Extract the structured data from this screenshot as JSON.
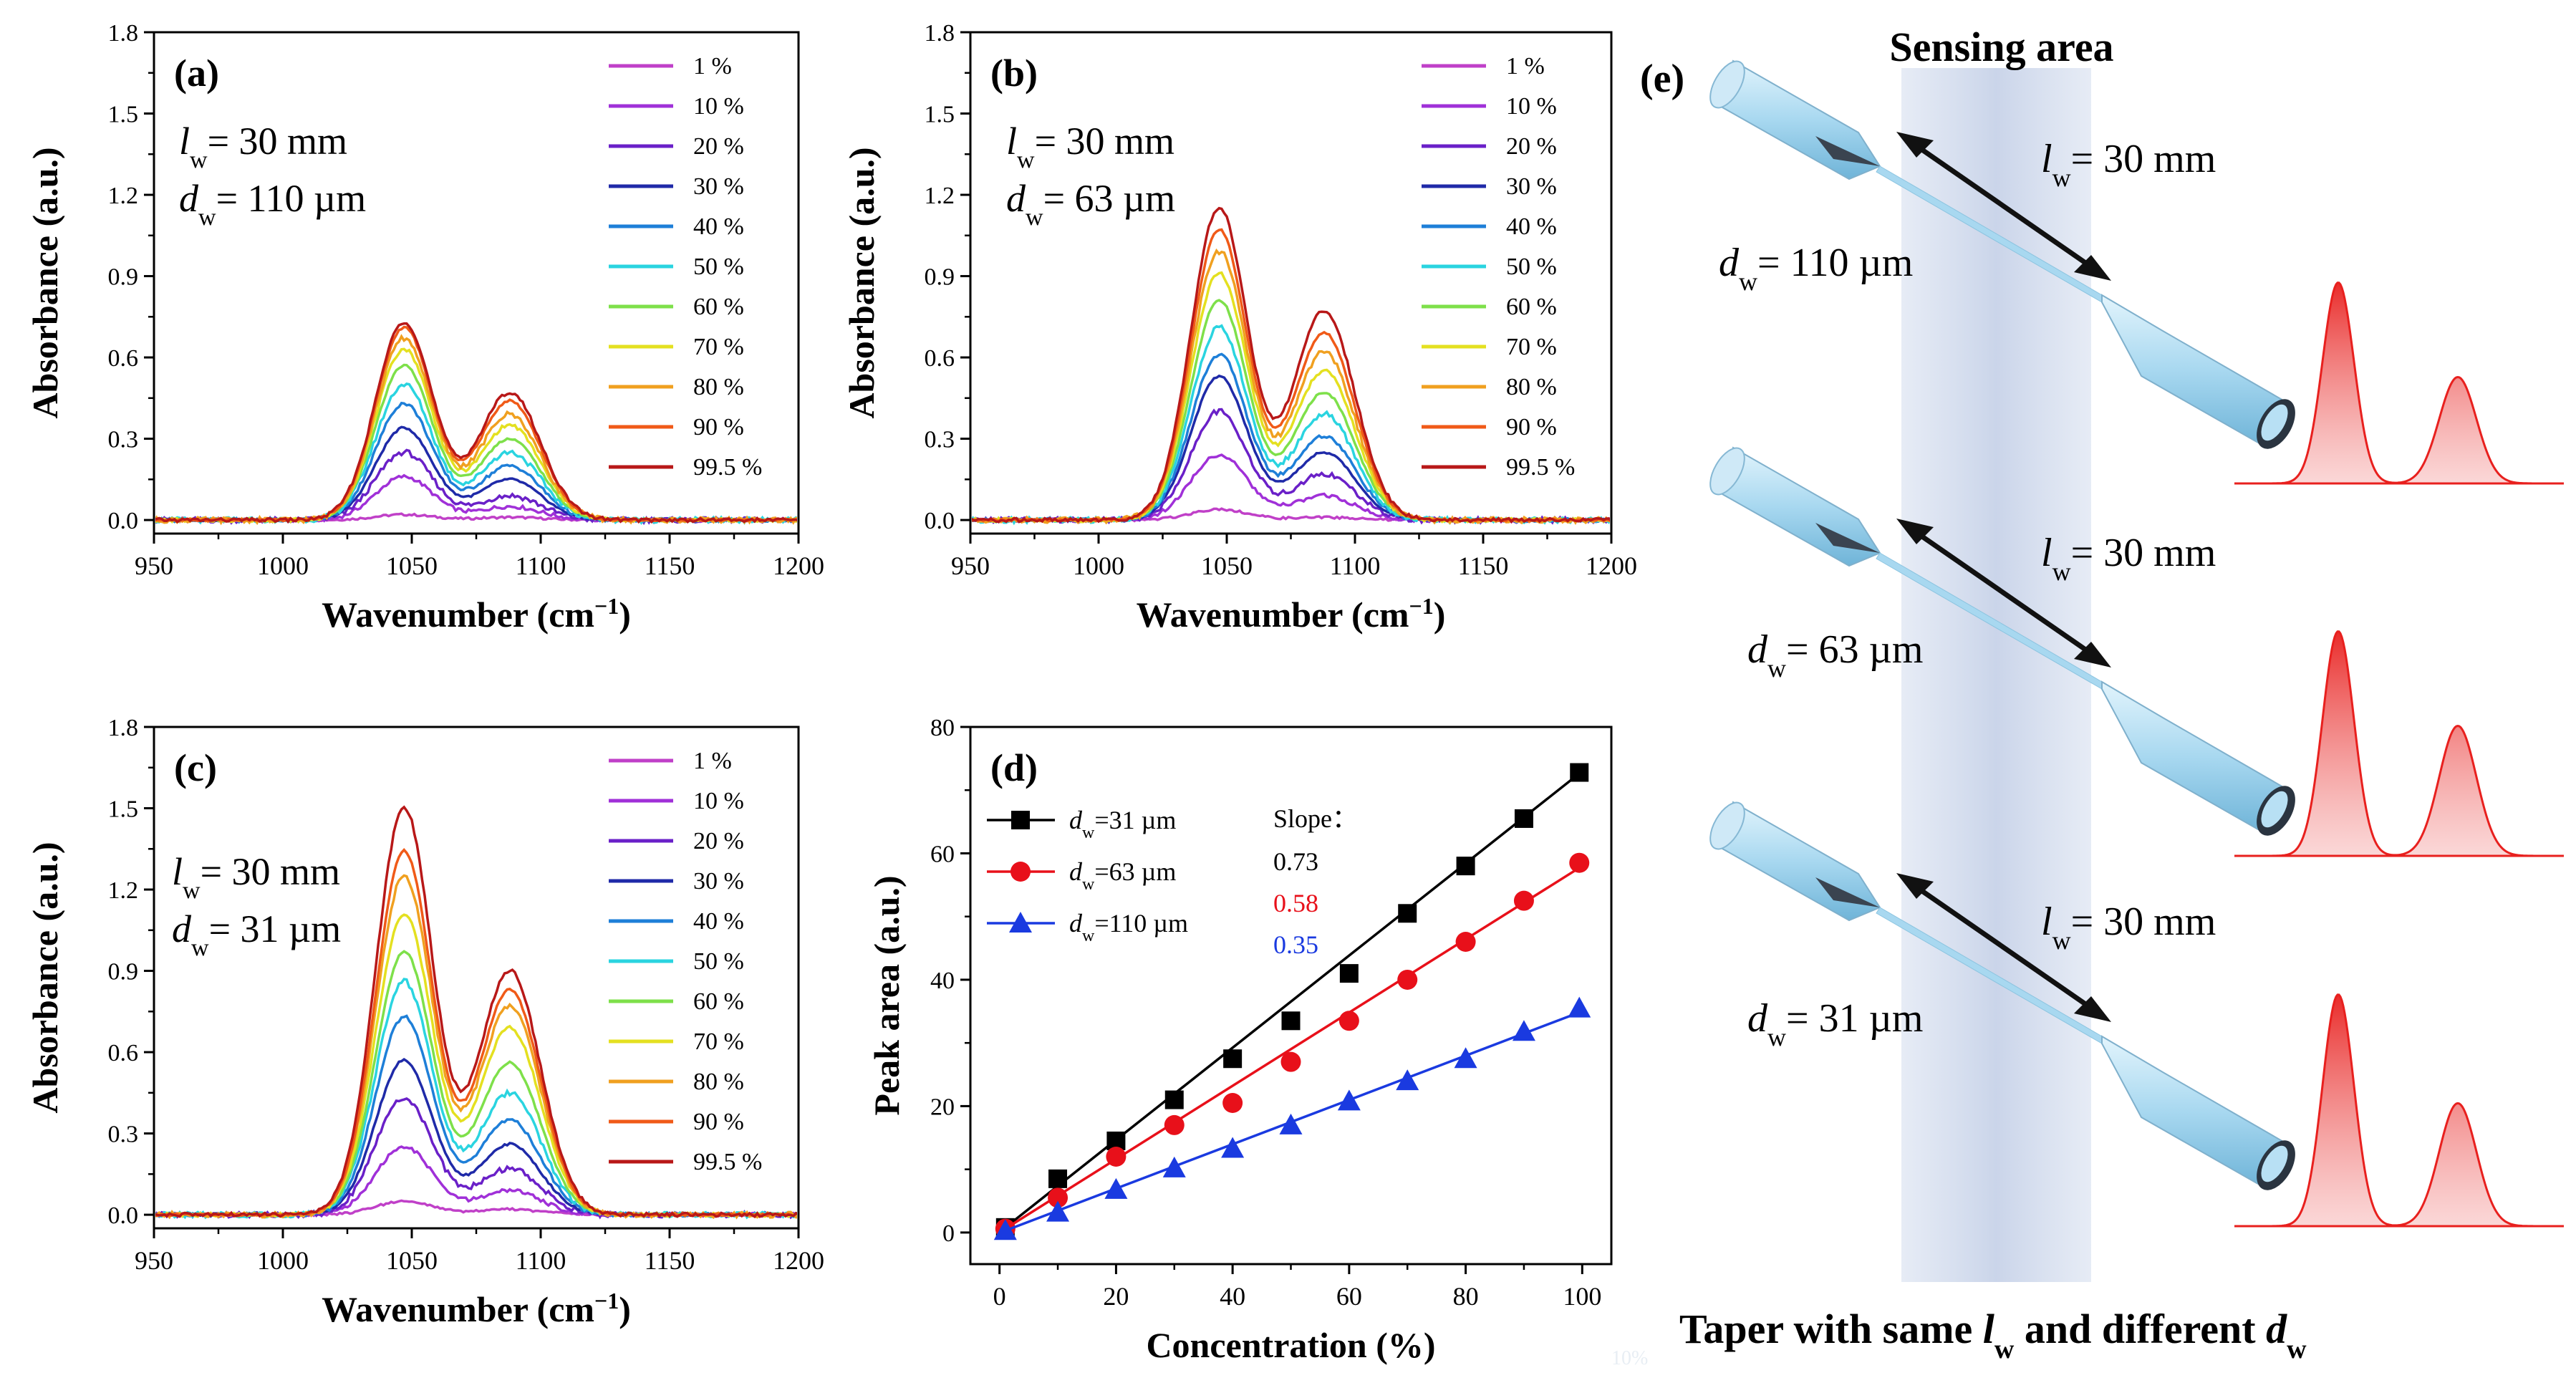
{
  "figure": {
    "spectra_legend": [
      {
        "label": "1 %",
        "color": "#c040c8"
      },
      {
        "label": "10 %",
        "color": "#a030d8"
      },
      {
        "label": "20 %",
        "color": "#6a20c8"
      },
      {
        "label": "30 %",
        "color": "#1f2aa8"
      },
      {
        "label": "40 %",
        "color": "#1e7fd8"
      },
      {
        "label": "50 %",
        "color": "#2ad4e0"
      },
      {
        "label": "60 %",
        "color": "#7ee04a"
      },
      {
        "label": "70 %",
        "color": "#e4e020"
      },
      {
        "label": "80 %",
        "color": "#f0a020"
      },
      {
        "label": "90 %",
        "color": "#f05a18"
      },
      {
        "label": "99.5 %",
        "color": "#b81818"
      }
    ],
    "e_panel": {
      "label": "(e)",
      "title": "Sensing area",
      "caption_prefix": "Taper with same ",
      "caption_l": "l",
      "caption_w1": "w",
      "caption_mid": " and different ",
      "caption_d": "d",
      "caption_w2": "w",
      "tapers": [
        {
          "l_sym": "l",
          "sub": "w",
          "l_val": "= 30 mm",
          "d_sym": "d",
          "d_val": "= 110 µm"
        },
        {
          "l_sym": "l",
          "sub": "w",
          "l_val": "= 30 mm",
          "d_sym": "d",
          "d_val": "= 63 µm"
        },
        {
          "l_sym": "l",
          "sub": "w",
          "l_val": "= 30 mm",
          "d_sym": "d",
          "d_val": "= 31 µm"
        }
      ],
      "peak_color": "#e8201e",
      "fiber_color": "#a8d8f0"
    },
    "stray_text": "10%"
  },
  "chart_data": [
    {
      "id": "a",
      "type": "line",
      "panel_label": "(a)",
      "xlabel": "Wavenumber (cm",
      "xlabel_sup": "−1",
      "xlabel_end": ")",
      "ylabel": "Absorbance (a.u.)",
      "xlim": [
        950,
        1200
      ],
      "ylim": [
        -0.05,
        1.8
      ],
      "xticks": [
        950,
        1000,
        1050,
        1100,
        1150,
        1200
      ],
      "yticks": [
        0.0,
        0.3,
        0.6,
        0.9,
        1.2,
        1.5,
        1.8
      ],
      "ytick_labels": [
        "0.0",
        "0.3",
        "0.6",
        "0.9",
        "1.2",
        "1.5",
        "1.8"
      ],
      "annotation": {
        "l_sym": "l",
        "sub": "w",
        "l_val": "= 30 mm",
        "d_sym": "d",
        "d_val": "= 110 µm"
      },
      "peak1_center": 1047,
      "peak2_center": 1088,
      "peak1_heights": [
        0.02,
        0.16,
        0.25,
        0.34,
        0.43,
        0.5,
        0.57,
        0.63,
        0.67,
        0.71,
        0.73
      ],
      "peak2_heights": [
        0.01,
        0.05,
        0.09,
        0.15,
        0.2,
        0.25,
        0.3,
        0.35,
        0.39,
        0.44,
        0.47
      ]
    },
    {
      "id": "b",
      "type": "line",
      "panel_label": "(b)",
      "xlabel": "Wavenumber (cm",
      "xlabel_sup": "−1",
      "xlabel_end": ")",
      "ylabel": "Absorbance (a.u.)",
      "xlim": [
        950,
        1200
      ],
      "ylim": [
        -0.05,
        1.8
      ],
      "xticks": [
        950,
        1000,
        1050,
        1100,
        1150,
        1200
      ],
      "yticks": [
        0.0,
        0.3,
        0.6,
        0.9,
        1.2,
        1.5,
        1.8
      ],
      "ytick_labels": [
        "0.0",
        "0.3",
        "0.6",
        "0.9",
        "1.2",
        "1.5",
        "1.8"
      ],
      "annotation": {
        "l_sym": "l",
        "sub": "w",
        "l_val": "= 30 mm",
        "d_sym": "d",
        "d_val": "= 63 µm"
      },
      "peak1_center": 1047,
      "peak2_center": 1088,
      "peak1_heights": [
        0.04,
        0.24,
        0.4,
        0.53,
        0.61,
        0.71,
        0.81,
        0.91,
        0.99,
        1.07,
        1.15
      ],
      "peak2_heights": [
        0.01,
        0.09,
        0.17,
        0.25,
        0.31,
        0.39,
        0.47,
        0.55,
        0.62,
        0.69,
        0.77
      ]
    },
    {
      "id": "c",
      "type": "line",
      "panel_label": "(c)",
      "xlabel": "Wavenumber (cm",
      "xlabel_sup": "−1",
      "xlabel_end": ")",
      "ylabel": "Absorbance (a.u.)",
      "xlim": [
        950,
        1200
      ],
      "ylim": [
        -0.05,
        1.8
      ],
      "xticks": [
        950,
        1000,
        1050,
        1100,
        1150,
        1200
      ],
      "yticks": [
        0.0,
        0.3,
        0.6,
        0.9,
        1.2,
        1.5,
        1.8
      ],
      "ytick_labels": [
        "0.0",
        "0.3",
        "0.6",
        "0.9",
        "1.2",
        "1.5",
        "1.8"
      ],
      "annotation": {
        "l_sym": "l",
        "sub": "w",
        "l_val": "= 30 mm",
        "d_sym": "d",
        "d_val": "= 31 µm"
      },
      "peak1_center": 1047,
      "peak2_center": 1088,
      "peak1_heights": [
        0.05,
        0.25,
        0.43,
        0.57,
        0.73,
        0.86,
        0.97,
        1.11,
        1.25,
        1.34,
        1.5
      ],
      "peak2_heights": [
        0.02,
        0.09,
        0.17,
        0.26,
        0.35,
        0.45,
        0.56,
        0.69,
        0.77,
        0.83,
        0.9
      ]
    },
    {
      "id": "d",
      "type": "scatter",
      "panel_label": "(d)",
      "xlabel": "Concentration (%)",
      "ylabel": "Peak area (a.u.)",
      "xlim": [
        -5,
        105
      ],
      "ylim": [
        -5,
        80
      ],
      "xticks": [
        0,
        20,
        40,
        60,
        80,
        100
      ],
      "yticks": [
        0,
        20,
        40,
        60,
        80
      ],
      "x": [
        1,
        10,
        20,
        30,
        40,
        50,
        60,
        70,
        80,
        90,
        99.5
      ],
      "slope_title": "Slope：",
      "series": [
        {
          "name_sym": "d",
          "name_sub": "w",
          "name_val": "=31 µm",
          "marker": "square",
          "color": "#000000",
          "slope": "0.73",
          "fit_slope": 0.73,
          "values": [
            0.8,
            8.5,
            14.5,
            21,
            27.5,
            33.5,
            41,
            50.5,
            58,
            65.5,
            72.8
          ]
        },
        {
          "name_sym": "d",
          "name_sub": "w",
          "name_val": "=63 µm",
          "marker": "circle",
          "color": "#e8101a",
          "slope": "0.58",
          "fit_slope": 0.58,
          "values": [
            0.6,
            5.5,
            12,
            17,
            20.5,
            27,
            33.5,
            40,
            46,
            52.5,
            58.5
          ]
        },
        {
          "name_sym": "d",
          "name_sub": "w",
          "name_val": "=110 µm",
          "marker": "triangle",
          "color": "#1a3ae0",
          "slope": "0.35",
          "fit_slope": 0.35,
          "values": [
            0.3,
            3.2,
            6.8,
            10.2,
            13.3,
            17,
            20.8,
            24,
            27.5,
            31.8,
            35.5
          ]
        }
      ]
    }
  ]
}
